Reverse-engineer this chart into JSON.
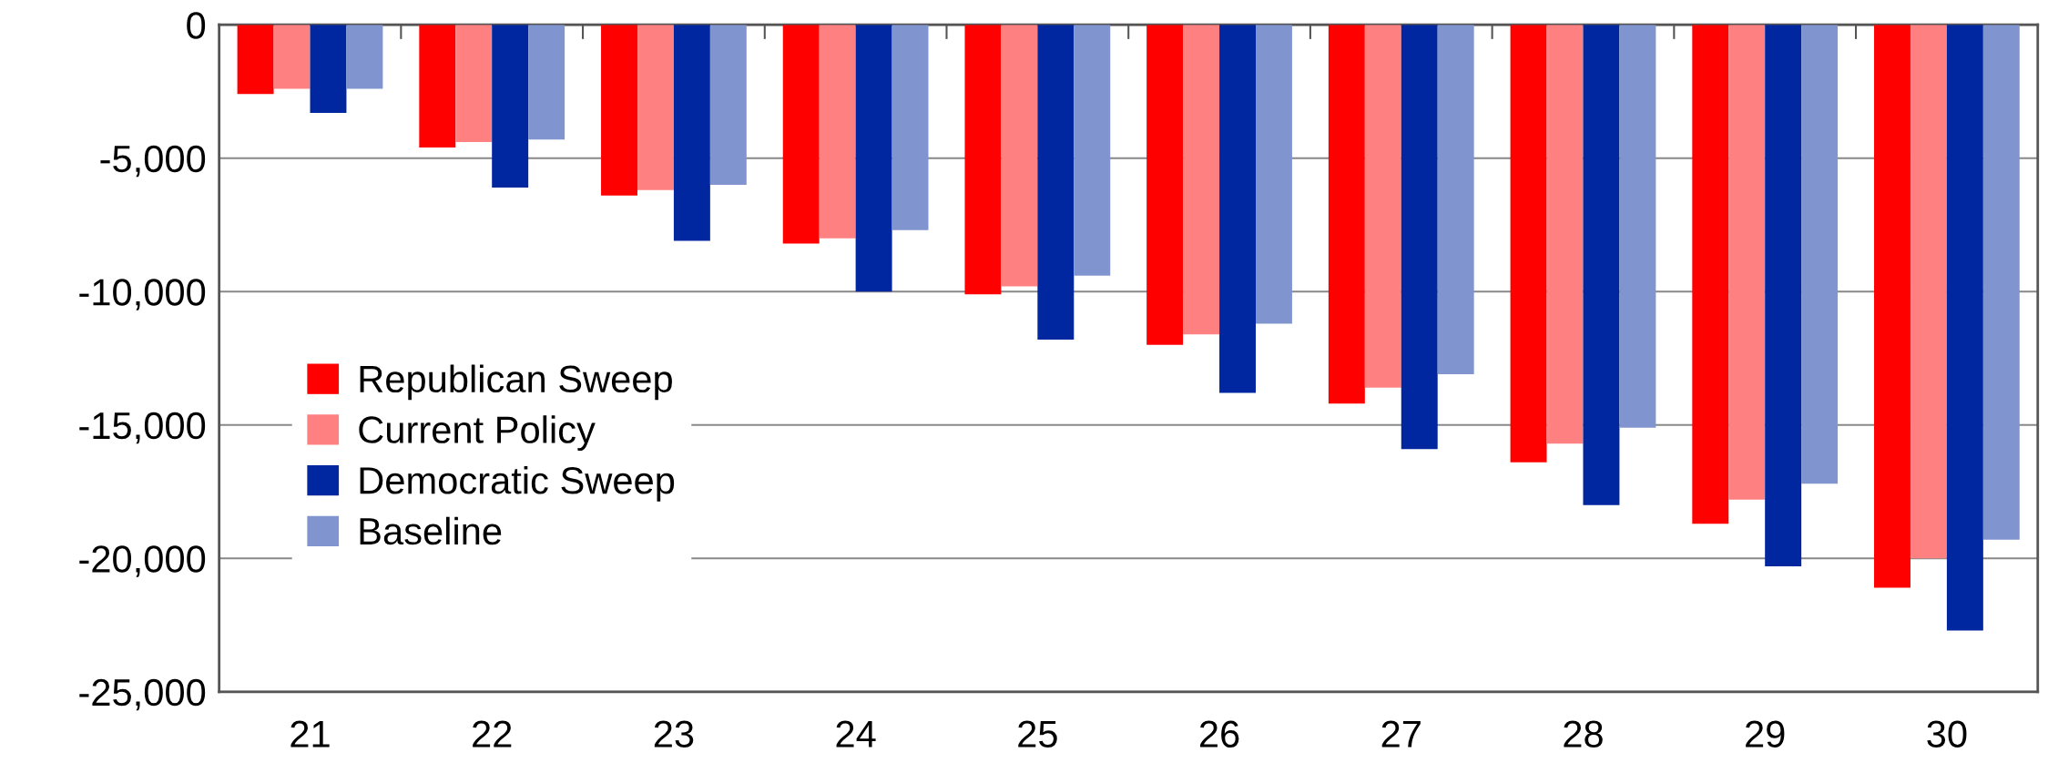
{
  "chart_data": {
    "type": "bar",
    "categories": [
      "21",
      "22",
      "23",
      "24",
      "25",
      "26",
      "27",
      "28",
      "29",
      "30"
    ],
    "series": [
      {
        "name": "Republican Sweep",
        "color": "#ff0000",
        "values": [
          -2600,
          -4600,
          -6400,
          -8200,
          -10100,
          -12000,
          -14200,
          -16400,
          -18700,
          -21100
        ]
      },
      {
        "name": "Current Policy",
        "color": "#ff8080",
        "values": [
          -2400,
          -4400,
          -6200,
          -8000,
          -9800,
          -11600,
          -13600,
          -15700,
          -17800,
          -20000
        ]
      },
      {
        "name": "Democratic Sweep",
        "color": "#0026a0",
        "values": [
          -3300,
          -6100,
          -8100,
          -10000,
          -11800,
          -13800,
          -15900,
          -18000,
          -20300,
          -22700
        ]
      },
      {
        "name": "Baseline",
        "color": "#8095d0",
        "values": [
          -2400,
          -4300,
          -6000,
          -7700,
          -9400,
          -11200,
          -13100,
          -15100,
          -17200,
          -19300
        ]
      }
    ],
    "ylim": [
      -25000,
      0
    ],
    "yticks": [
      {
        "value": -25000,
        "label": "-25,000"
      },
      {
        "value": -20000,
        "label": "-20,000"
      },
      {
        "value": -15000,
        "label": "-15,000"
      },
      {
        "value": -10000,
        "label": "-10,000"
      },
      {
        "value": -5000,
        "label": "-5,000"
      },
      0
    ],
    "grid": "y",
    "legend": "left"
  }
}
